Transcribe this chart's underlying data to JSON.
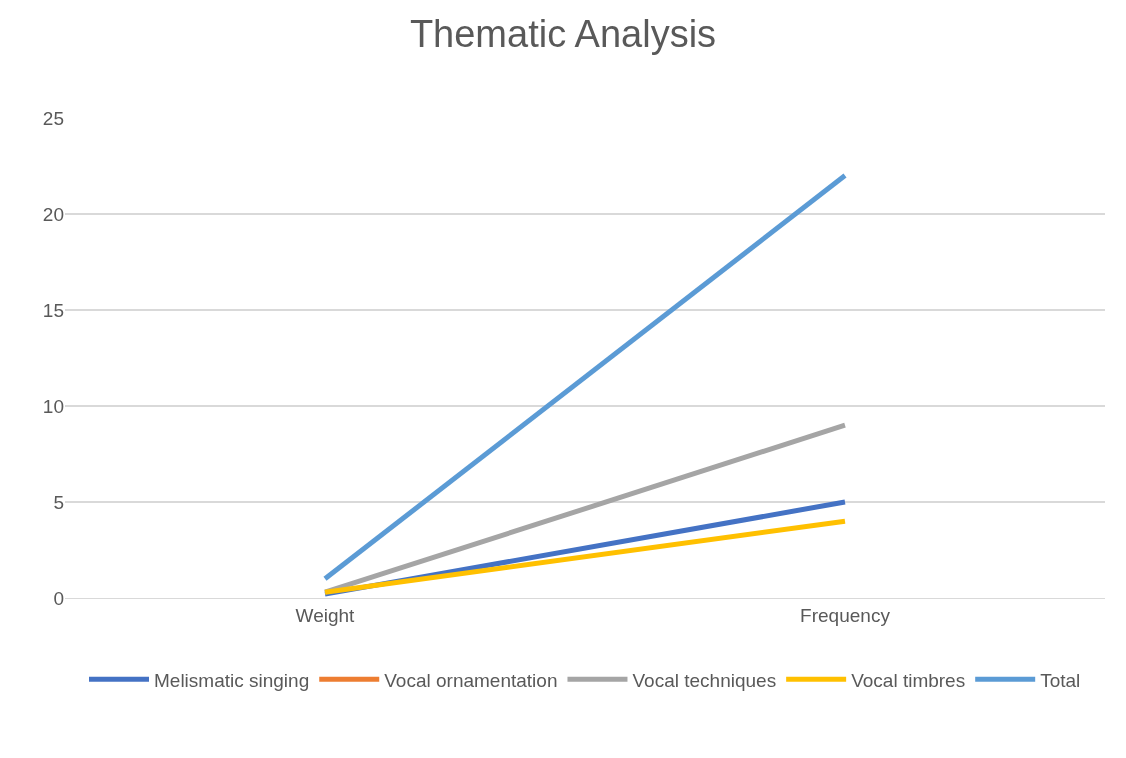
{
  "chart_data": {
    "type": "line",
    "title": "Thematic Analysis",
    "categories": [
      "Weight",
      "Frequency"
    ],
    "series": [
      {
        "name": "Melismatic singing",
        "color": "#4472c4",
        "values": [
          0.2,
          5
        ]
      },
      {
        "name": "Vocal ornamentation",
        "color": "#ed7d31",
        "values": [
          null,
          null
        ]
      },
      {
        "name": "Vocal techniques",
        "color": "#a5a5a5",
        "values": [
          0.3,
          9
        ]
      },
      {
        "name": "Vocal timbres",
        "color": "#ffc000",
        "values": [
          0.3,
          4
        ]
      },
      {
        "name": "Total",
        "color": "#5b9bd5",
        "values": [
          1,
          22
        ]
      }
    ],
    "ylim": [
      0,
      25
    ],
    "yticks": [
      0,
      5,
      10,
      15,
      20,
      25
    ],
    "grid": "y",
    "legend": "bottom",
    "marker": "none",
    "line_style": "solid"
  }
}
